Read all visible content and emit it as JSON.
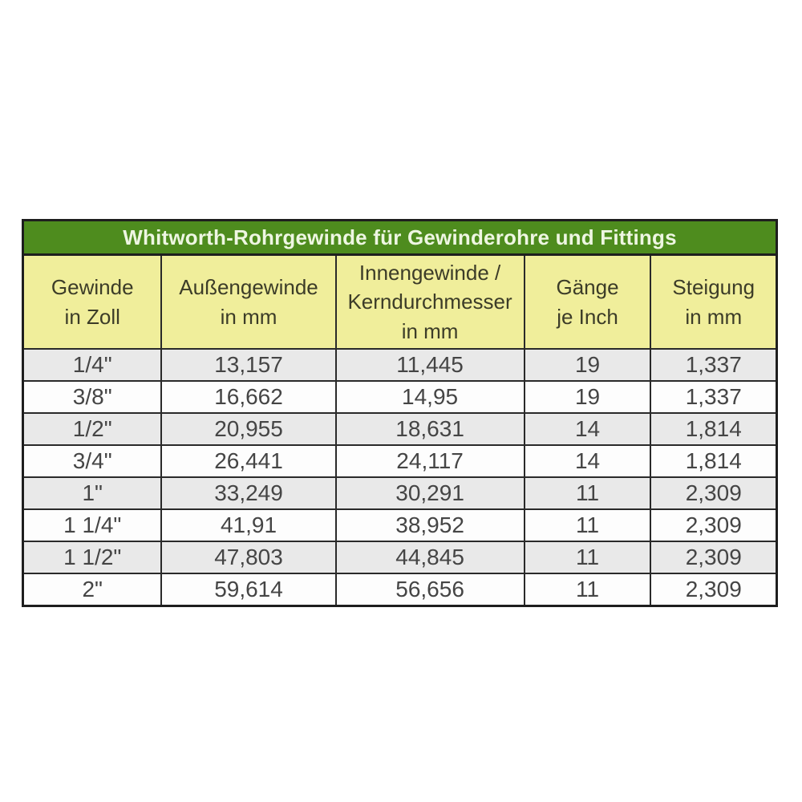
{
  "table": {
    "title": "Whitworth-Rohrgewinde für Gewinderohre und Fittings",
    "headers": [
      "Gewinde\nin Zoll",
      "Außengewinde\nin mm",
      "Innengewinde /\nKerndurchmesser\nin mm",
      "Gänge\nje Inch",
      "Steigung\nin mm"
    ],
    "rows": [
      [
        "1/4\"",
        "13,157",
        "11,445",
        "19",
        "1,337"
      ],
      [
        "3/8\"",
        "16,662",
        "14,95",
        "19",
        "1,337"
      ],
      [
        "1/2\"",
        "20,955",
        "18,631",
        "14",
        "1,814"
      ],
      [
        "3/4\"",
        "26,441",
        "24,117",
        "14",
        "1,814"
      ],
      [
        "1\"",
        "33,249",
        "30,291",
        "11",
        "2,309"
      ],
      [
        "1 1/4\"",
        "41,91",
        "38,952",
        "11",
        "2,309"
      ],
      [
        "1 1/2\"",
        "47,803",
        "44,845",
        "11",
        "2,309"
      ],
      [
        "2\"",
        "59,614",
        "56,656",
        "11",
        "2,309"
      ]
    ]
  },
  "colors": {
    "title_background": "#4e8c1e",
    "title_text": "#eef6e2",
    "header_background": "#f0ee9b",
    "row_background": "#fdfdfd",
    "row_alt_background": "#e9e9e9",
    "border": "#2a2a2a",
    "cell_text": "#454545"
  },
  "chart_data": {
    "type": "table",
    "title": "Whitworth-Rohrgewinde für Gewinderohre und Fittings",
    "columns": [
      "Gewinde in Zoll",
      "Außengewinde in mm",
      "Innengewinde / Kerndurchmesser in mm",
      "Gänge je Inch",
      "Steigung in mm"
    ],
    "rows": [
      [
        "1/4\"",
        13.157,
        11.445,
        19,
        1.337
      ],
      [
        "3/8\"",
        16.662,
        14.95,
        19,
        1.337
      ],
      [
        "1/2\"",
        20.955,
        18.631,
        14,
        1.814
      ],
      [
        "3/4\"",
        26.441,
        24.117,
        14,
        1.814
      ],
      [
        "1\"",
        33.249,
        30.291,
        11,
        2.309
      ],
      [
        "1 1/4\"",
        41.91,
        38.952,
        11,
        2.309
      ],
      [
        "1 1/2\"",
        47.803,
        44.845,
        11,
        2.309
      ],
      [
        "2\"",
        59.614,
        56.656,
        11,
        2.309
      ]
    ],
    "notes": "Decimal values displayed with comma separator in the image"
  }
}
